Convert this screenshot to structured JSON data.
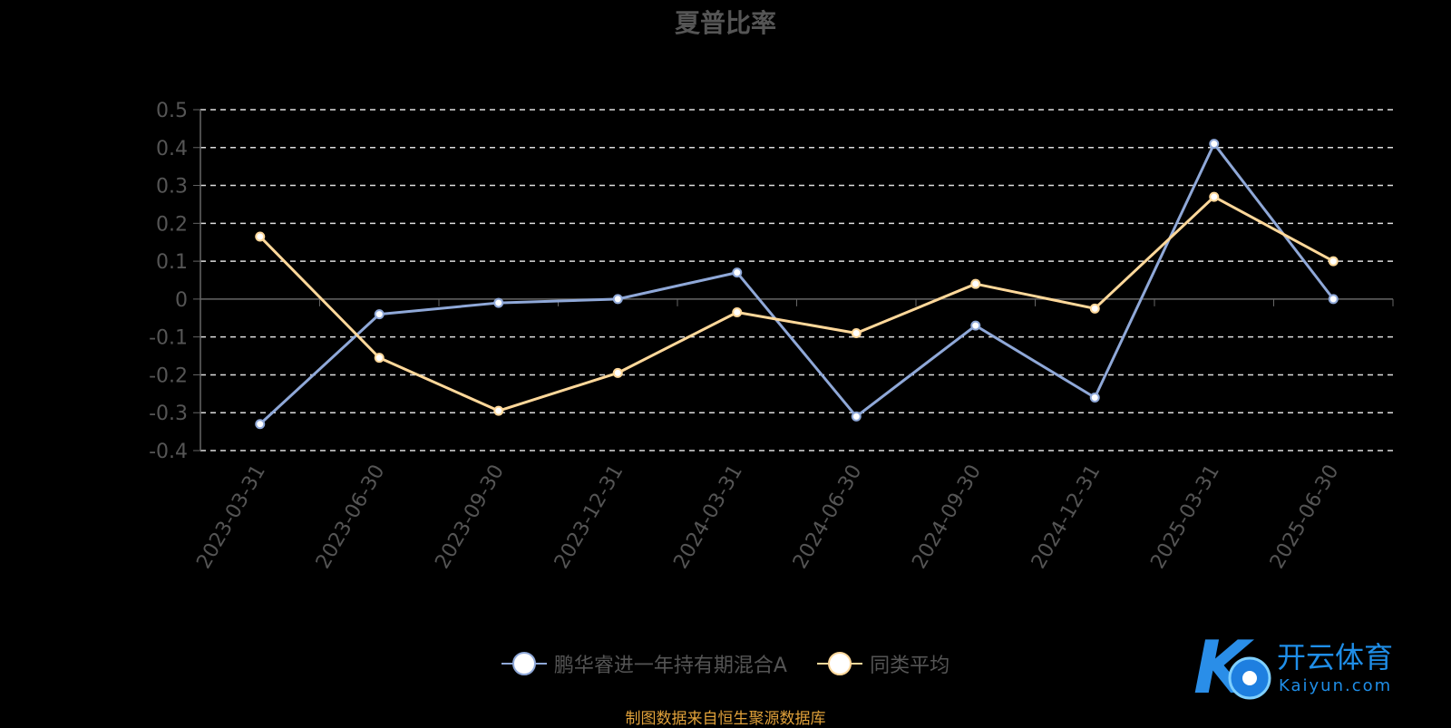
{
  "chart_data": {
    "type": "line",
    "title": "夏普比率",
    "categories": [
      "2023-03-31",
      "2023-06-30",
      "2023-09-30",
      "2023-12-31",
      "2024-03-31",
      "2024-06-30",
      "2024-09-30",
      "2024-12-31",
      "2025-03-31",
      "2025-06-30"
    ],
    "y_ticks": [
      "0.5",
      "0.4",
      "0.3",
      "0.2",
      "0.1",
      "0",
      "-0.1",
      "-0.2",
      "-0.3",
      "-0.4"
    ],
    "ylim": [
      -0.4,
      0.5
    ],
    "grid": true,
    "legend_position": "bottom",
    "series": [
      {
        "name": "鹏华睿进一年持有期混合A",
        "color": "#8fa8d8",
        "values": [
          -0.33,
          -0.04,
          -0.01,
          0.0,
          0.07,
          -0.31,
          -0.07,
          -0.26,
          0.41,
          0.0
        ]
      },
      {
        "name": "同类平均",
        "color": "#ffd89a",
        "values": [
          0.165,
          -0.155,
          -0.295,
          -0.195,
          -0.035,
          -0.09,
          0.04,
          -0.025,
          0.27,
          0.1
        ]
      }
    ]
  },
  "footer": {
    "source": "制图数据来自恒生聚源数据库"
  },
  "logo": {
    "brand": "开云体育",
    "domain": "Kaiyun.com"
  }
}
